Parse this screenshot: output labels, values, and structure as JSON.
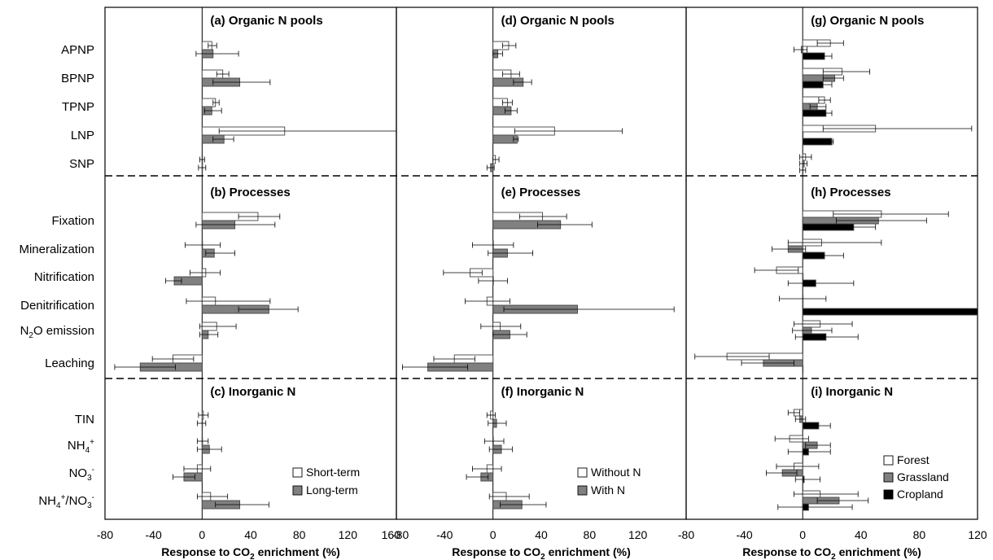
{
  "chart_data": {
    "type": "bar",
    "orientation": "horizontal",
    "legend_placement": "bottom-right",
    "grid": false,
    "category_labels": [
      {
        "key": "APNP",
        "text": "APNP"
      },
      {
        "key": "BPNP",
        "text": "BPNP"
      },
      {
        "key": "TPNP",
        "text": "TPNP"
      },
      {
        "key": "LNP",
        "text": "LNP"
      },
      {
        "key": "SNP",
        "text": "SNP"
      },
      {
        "key": "Fixation",
        "text": "Fixation"
      },
      {
        "key": "Mineralization",
        "text": "Mineralization"
      },
      {
        "key": "Nitrification",
        "text": "Nitrification"
      },
      {
        "key": "Denitrification",
        "text": "Denitrification"
      },
      {
        "key": "N2O",
        "text": "N",
        "sub": "2",
        "tail": "O emission"
      },
      {
        "key": "Leaching",
        "text": "Leaching"
      },
      {
        "key": "TIN",
        "text": "TIN"
      },
      {
        "key": "NH4",
        "text": "NH",
        "sub": "4",
        "sup": "+"
      },
      {
        "key": "NO3",
        "text": "NO",
        "sub": "3",
        "sup": "-"
      },
      {
        "key": "NH4NO3",
        "text": "NH",
        "sub": "4",
        "sup": "+",
        "tail": "/NO",
        "sub2": "3",
        "sup2": "-"
      }
    ],
    "sections": [
      {
        "key": "organic",
        "cats": [
          "APNP",
          "BPNP",
          "TPNP",
          "LNP",
          "SNP"
        ]
      },
      {
        "key": "processes",
        "cats": [
          "Fixation",
          "Mineralization",
          "Nitrification",
          "Denitrification",
          "N2O",
          "Leaching"
        ]
      },
      {
        "key": "inorganic",
        "cats": [
          "TIN",
          "NH4",
          "NO3",
          "NH4NO3"
        ]
      }
    ],
    "panels": [
      {
        "xlim": [
          -80,
          160
        ],
        "ticks": [
          -80,
          -40,
          0,
          40,
          80,
          120,
          160
        ],
        "tick_labels": [
          "-80",
          "-40",
          "0",
          "40",
          "80",
          "120",
          "160"
        ],
        "xlabel": "Response to CO2 enrichment (%)",
        "section_titles": [
          "(a) Organic N pools",
          "(b) Processes",
          "(c) Inorganic N"
        ],
        "series": [
          {
            "name": "Short-term",
            "color": "#ffffff",
            "values": [
              8,
              17,
              11,
              68,
              0,
              46,
              0,
              3,
              11,
              12,
              -24,
              1,
              0,
              -4,
              7
            ],
            "errors": [
              [
                5,
                12
              ],
              [
                12,
                22
              ],
              [
                9,
                14
              ],
              [
                14,
                178
              ],
              [
                -2,
                2
              ],
              [
                30,
                64
              ],
              [
                -14,
                15
              ],
              [
                -10,
                15
              ],
              [
                -13,
                56
              ],
              [
                -2,
                28
              ],
              [
                -41,
                -7
              ],
              [
                -3,
                5
              ],
              [
                -4,
                5
              ],
              [
                -15,
                7
              ],
              [
                -4,
                21
              ]
            ]
          },
          {
            "name": "Long-term",
            "color": "#808080",
            "values": [
              9,
              31,
              8,
              18,
              0,
              27,
              10,
              -23,
              55,
              5,
              -51,
              0,
              6,
              -15,
              31
            ],
            "errors": [
              [
                -5,
                30
              ],
              [
                9,
                56
              ],
              [
                2,
                16
              ],
              [
                9,
                26
              ],
              [
                -3,
                3
              ],
              [
                -5,
                60
              ],
              [
                3,
                27
              ],
              [
                -30,
                -17
              ],
              [
                30,
                79
              ],
              [
                -2,
                13
              ],
              [
                -72,
                -22
              ],
              [
                -4,
                3
              ],
              [
                -4,
                16
              ],
              [
                -24,
                -6
              ],
              [
                11,
                55
              ]
            ]
          }
        ]
      },
      {
        "xlim": [
          -80,
          160
        ],
        "ticks": [
          -80,
          -40,
          0,
          40,
          80,
          120
        ],
        "tick_labels": [
          "-80",
          "-40",
          "0",
          "40",
          "80",
          "120"
        ],
        "xlabel": "Response to CO2 enrichment (%)",
        "section_titles": [
          "(d) Organic N pools",
          "(e) Processes",
          "(f) Inorganic N"
        ],
        "series": [
          {
            "name": "Without N",
            "color": "#ffffff",
            "values": [
              13,
              15,
              12,
              51,
              2,
              41,
              0,
              -19,
              -5,
              6,
              -32,
              -2,
              0,
              -5,
              11
            ],
            "errors": [
              [
                8,
                19
              ],
              [
                8,
                22
              ],
              [
                8,
                16
              ],
              [
                18,
                107
              ],
              [
                0,
                5
              ],
              [
                22,
                61
              ],
              [
                -17,
                17
              ],
              [
                -41,
                -9
              ],
              [
                -23,
                14
              ],
              [
                -10,
                23
              ],
              [
                -49,
                -15
              ],
              [
                -5,
                2
              ],
              [
                -7,
                9
              ],
              [
                -17,
                7
              ],
              [
                -3,
                30
              ]
            ]
          },
          {
            "name": "With N",
            "color": "#808080",
            "values": [
              4,
              25,
              15,
              20,
              -2,
              56,
              12,
              0,
              70,
              14,
              -54,
              3,
              7,
              -10,
              24
            ],
            "errors": [
              [
                0,
                8
              ],
              [
                17,
                32
              ],
              [
                10,
                20
              ],
              [
                17,
                21
              ],
              [
                -5,
                1
              ],
              [
                37,
                82
              ],
              [
                -4,
                33
              ],
              [
                -12,
                12
              ],
              [
                9,
                150
              ],
              [
                0,
                28
              ],
              [
                -75,
                -21
              ],
              [
                -4,
                11
              ],
              [
                -3,
                16
              ],
              [
                -22,
                -4
              ],
              [
                6,
                44
              ]
            ]
          }
        ]
      },
      {
        "xlim": [
          -80,
          120
        ],
        "ticks": [
          -80,
          -40,
          0,
          40,
          80,
          120
        ],
        "tick_labels": [
          "-80",
          "-40",
          "0",
          "40",
          "80",
          "120"
        ],
        "xlabel": "Response to CO2 enrichment (%)",
        "section_titles": [
          "(g) Organic N pools",
          "(h) Processes",
          "(i) Inorganic N"
        ],
        "series": [
          {
            "name": "Forest",
            "color": "#ffffff",
            "values": [
              19,
              27,
              15,
              50,
              2,
              54,
              13,
              -18,
              0,
              12,
              -52,
              -6,
              -9,
              -6,
              12
            ],
            "errors": [
              [
                10,
                28
              ],
              [
                14,
                46
              ],
              [
                11,
                19
              ],
              [
                14,
                116
              ],
              [
                -2,
                6
              ],
              [
                21,
                100
              ],
              [
                -10,
                54
              ],
              [
                -33,
                -3
              ],
              [
                -16,
                16
              ],
              [
                -6,
                34
              ],
              [
                -74,
                -23
              ],
              [
                -10,
                -2
              ],
              [
                -19,
                4
              ],
              [
                -18,
                11
              ],
              [
                -6,
                38
              ]
            ]
          },
          {
            "name": "Grassland",
            "color": "#808080",
            "values": [
              -1,
              22,
              10,
              0,
              1,
              52,
              -10,
              0,
              0,
              6,
              -27,
              -2,
              10,
              -14,
              25
            ],
            "errors": [
              [
                -6,
                3
              ],
              [
                14,
                28
              ],
              [
                5,
                16
              ],
              [
                0,
                0
              ],
              [
                -2,
                3
              ],
              [
                23,
                85
              ],
              [
                -21,
                2
              ],
              [
                0,
                0
              ],
              [
                0,
                0
              ],
              [
                -7,
                20
              ],
              [
                -42,
                -6
              ],
              [
                -5,
                2
              ],
              [
                2,
                19
              ],
              [
                -25,
                -4
              ],
              [
                10,
                45
              ]
            ]
          },
          {
            "name": "Cropland",
            "color": "#000000",
            "values": [
              15,
              14,
              16,
              20,
              0,
              35,
              15,
              9,
              125,
              16,
              0,
              11,
              4,
              1,
              4
            ],
            "errors": [
              [
                8,
                20
              ],
              [
                8,
                20
              ],
              [
                12,
                20
              ],
              [
                18,
                21
              ],
              [
                -2,
                2
              ],
              [
                20,
                50
              ],
              [
                5,
                28
              ],
              [
                -10,
                35
              ],
              [
                100,
                150
              ],
              [
                -5,
                38
              ],
              [
                0,
                0
              ],
              [
                5,
                19
              ],
              [
                -10,
                19
              ],
              [
                -5,
                12
              ],
              [
                -17,
                34
              ]
            ]
          }
        ]
      }
    ]
  }
}
